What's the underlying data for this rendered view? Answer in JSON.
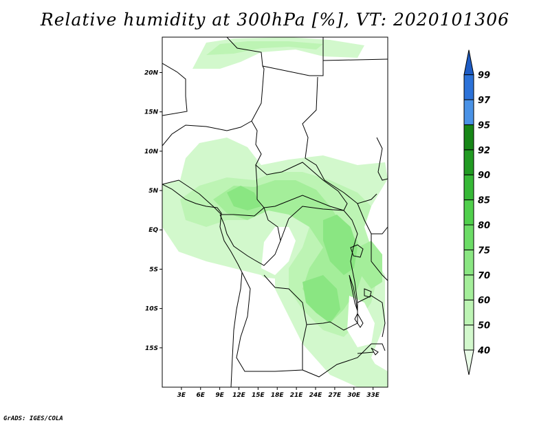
{
  "title": "Relative humidity at 300hPa [%], VT: 2020101306",
  "credit": "GrADS: IGES/COLA",
  "map": {
    "lat_labels": [
      "20N",
      "15N",
      "10N",
      "5N",
      "EQ",
      "5S",
      "10S",
      "15S"
    ],
    "lon_labels": [
      "3E",
      "6E",
      "9E",
      "12E",
      "15E",
      "18E",
      "21E",
      "24E",
      "27E",
      "30E",
      "33E"
    ],
    "lat_range": [
      -20,
      24.5
    ],
    "lon_range": [
      0,
      35.3
    ]
  },
  "colorbar": {
    "levels": [
      "40",
      "50",
      "60",
      "70",
      "75",
      "80",
      "85",
      "90",
      "92",
      "95",
      "97",
      "99"
    ],
    "colors": [
      "#eafce8",
      "#d2f8cc",
      "#bdf4b4",
      "#a4ee9a",
      "#8ae682",
      "#6cdc66",
      "#50cf4c",
      "#36b836",
      "#219a22",
      "#178617",
      "#4a92e6",
      "#2c72d8",
      "#1e5cc4"
    ]
  }
}
